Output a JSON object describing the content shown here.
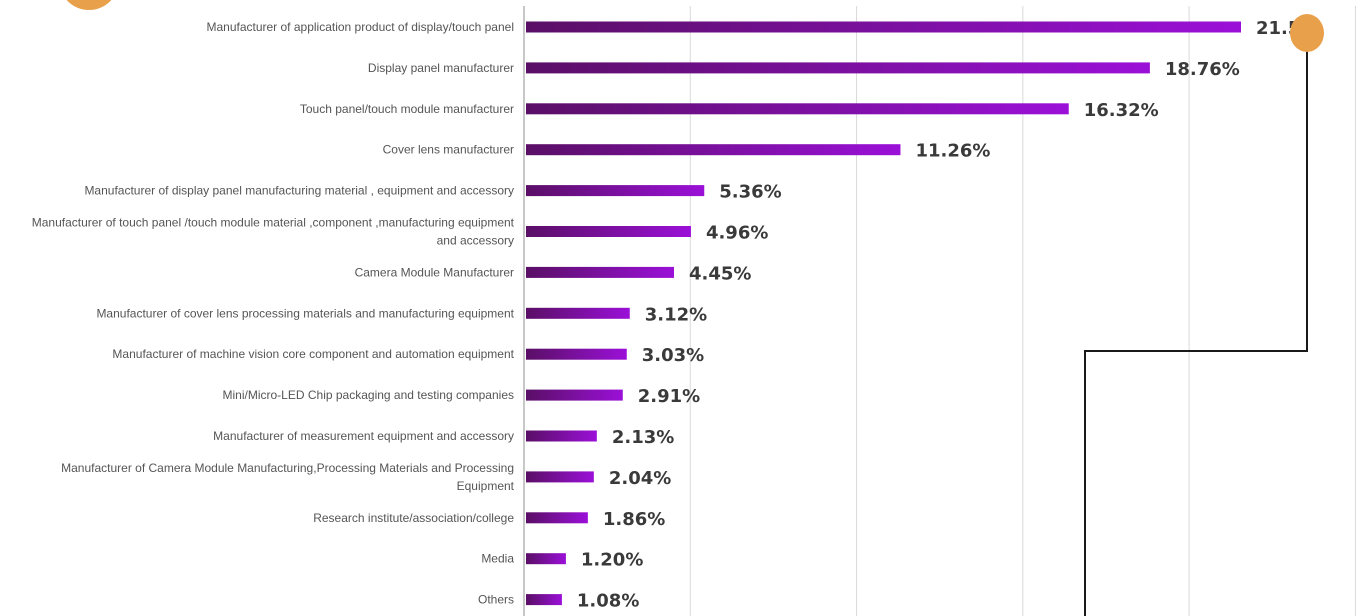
{
  "chart_data": {
    "type": "bar",
    "orientation": "horizontal",
    "categories": [
      [
        "Manufacturer of application product of display/touch panel"
      ],
      [
        "Display panel manufacturer"
      ],
      [
        "Touch panel/touch module manufacturer"
      ],
      [
        "Cover lens manufacturer"
      ],
      [
        "Manufacturer of display panel manufacturing material , equipment and accessory"
      ],
      [
        "Manufacturer of touch panel /touch module material ,component ,manufacturing equipment",
        "and accessory"
      ],
      [
        "Camera Module Manufacturer"
      ],
      [
        "Manufacturer of cover lens  processing materials and manufacturing equipment"
      ],
      [
        "Manufacturer of machine vision core component and automation equipment"
      ],
      [
        "Mini/Micro-LED Chip packaging and testing companies"
      ],
      [
        "Manufacturer of measurement equipment and accessory"
      ],
      [
        "Manufacturer of Camera Module Manufacturing,Processing  Materials and Processing",
        "Equipment"
      ],
      [
        "Research institute/association/college"
      ],
      [
        "Media"
      ],
      [
        "Others"
      ]
    ],
    "values": [
      21.5,
      18.76,
      16.32,
      11.26,
      5.36,
      4.96,
      4.45,
      3.12,
      3.03,
      2.91,
      2.13,
      2.04,
      1.86,
      1.2,
      1.08
    ],
    "value_labels": [
      "21.5",
      "18.76%",
      "16.32%",
      "11.26%",
      "5.36%",
      "4.96%",
      "4.45%",
      "3.12%",
      "3.03%",
      "2.91%",
      "2.13%",
      "2.04%",
      "1.86%",
      "1.20%",
      "1.08%"
    ],
    "xlim": [
      0,
      25
    ],
    "grid": true,
    "bar_gradient": [
      "#5a0f66",
      "#9b10d8"
    ],
    "value_color": "#3a3a3a",
    "accent_color": "#e8a04a",
    "line_color": "#1a1a1a"
  }
}
